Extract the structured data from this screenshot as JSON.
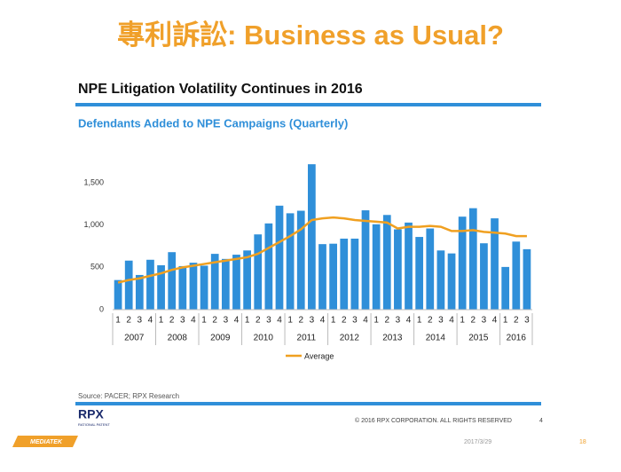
{
  "slide": {
    "title": "專利訴訟: Business as Usual?",
    "subtitle": "NPE Litigation Volatility Continues in 2016",
    "source": "Source: PACER; RPX Research",
    "copyright": "© 2016 RPX CORPORATION. ALL RIGHTS RESERVED",
    "inner_page": "4",
    "logo": "RPX",
    "logo_sub": "RATIONAL PATENT",
    "brand": "MEDIATEK",
    "date": "2017/3/29",
    "page": "18"
  },
  "chart_data": {
    "type": "bar",
    "title": "Defendants Added to NPE Campaigns (Quarterly)",
    "categories": [
      "1",
      "2",
      "3",
      "4",
      "1",
      "2",
      "3",
      "4",
      "1",
      "2",
      "3",
      "4",
      "1",
      "2",
      "3",
      "4",
      "1",
      "2",
      "3",
      "4",
      "1",
      "2",
      "3",
      "4",
      "1",
      "2",
      "3",
      "4",
      "1",
      "2",
      "3",
      "4",
      "1",
      "2",
      "3",
      "4",
      "1",
      "2",
      "3"
    ],
    "years": [
      "2007",
      "2008",
      "2009",
      "2010",
      "2011",
      "2012",
      "2013",
      "2014",
      "2015",
      "2016"
    ],
    "values": [
      350,
      580,
      410,
      590,
      525,
      680,
      515,
      555,
      520,
      660,
      600,
      650,
      700,
      890,
      1020,
      1230,
      1140,
      1170,
      1720,
      775,
      780,
      840,
      840,
      1175,
      1010,
      1120,
      950,
      1030,
      860,
      960,
      700,
      665,
      1100,
      1200,
      785,
      1080,
      505,
      805,
      715
    ],
    "color": "#2f8fd9",
    "series": [
      {
        "name": "Average",
        "color": "#f0a020",
        "values": [
          320,
          350,
          370,
          400,
          430,
          470,
          500,
          520,
          540,
          560,
          580,
          600,
          620,
          660,
          730,
          800,
          870,
          950,
          1060,
          1080,
          1090,
          1080,
          1060,
          1050,
          1040,
          1030,
          960,
          980,
          980,
          990,
          980,
          930,
          930,
          940,
          920,
          910,
          900,
          870,
          870
        ]
      }
    ],
    "ylim": [
      0,
      1800
    ],
    "yticks": [
      0,
      500,
      {
        "value": 1000,
        "label": "1,000"
      },
      {
        "value": 1500,
        "label": "1,500"
      }
    ]
  }
}
